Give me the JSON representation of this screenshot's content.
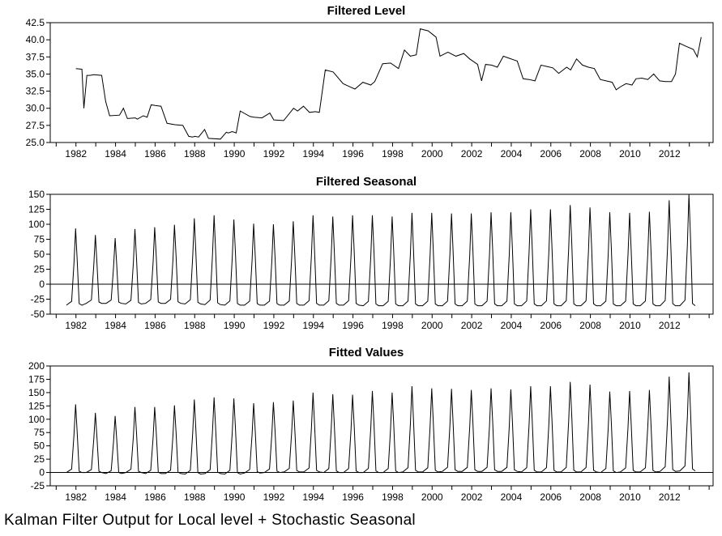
{
  "caption": "Kalman Filter Output for Local level + Stochastic Seasonal",
  "chart_data": [
    {
      "type": "line",
      "title": "Filtered Level",
      "xlabel": "",
      "ylabel": "",
      "xlim": [
        1980.7,
        2014.2
      ],
      "ylim": [
        25.0,
        42.5
      ],
      "yticks": [
        "25.0",
        "27.5",
        "30.0",
        "32.5",
        "35.0",
        "37.5",
        "40.0",
        "42.5"
      ],
      "xticks": [
        "1982",
        "1984",
        "1986",
        "1988",
        "1990",
        "1992",
        "1994",
        "1996",
        "1998",
        "2000",
        "2002",
        "2004",
        "2006",
        "2008",
        "2010",
        "2012"
      ],
      "grid": false,
      "series": [
        {
          "x": [
            1982.0,
            1982.3,
            1982.4,
            1982.55,
            1982.7,
            1982.9,
            1983.3,
            1983.5,
            1983.7,
            1984.2,
            1984.4,
            1984.6,
            1985.0,
            1985.1,
            1985.4,
            1985.6,
            1985.8,
            1986.0,
            1986.3,
            1986.6,
            1987.0,
            1987.4,
            1987.7,
            1987.9,
            1988.0,
            1988.2,
            1988.5,
            1988.7,
            1989.3,
            1989.6,
            1989.7,
            1989.9,
            1990.1,
            1990.3,
            1990.8,
            1991.0,
            1991.4,
            1991.8,
            1992.0,
            1992.5,
            1993.0,
            1993.2,
            1993.5,
            1993.8,
            1994.1,
            1994.3,
            1994.6,
            1995.0,
            1995.5,
            1995.8,
            1996.1,
            1996.5,
            1996.9,
            1997.1,
            1997.5,
            1997.9,
            1998.3,
            1998.6,
            1998.9,
            1999.2,
            1999.4,
            1999.8,
            2000.2,
            2000.4,
            2000.8,
            2001.2,
            2001.6,
            2001.9,
            2002.3,
            2002.5,
            2002.7,
            2003.0,
            2003.3,
            2003.6,
            2003.9,
            2004.3,
            2004.6,
            2004.9,
            2005.2,
            2005.5,
            2005.8,
            2006.1,
            2006.4,
            2006.8,
            2007.0,
            2007.3,
            2007.6,
            2007.9,
            2008.2,
            2008.5,
            2008.8,
            2009.1,
            2009.3,
            2009.5,
            2009.8,
            2010.1,
            2010.3,
            2010.6,
            2010.9,
            2011.2,
            2011.5,
            2011.8,
            2012.1,
            2012.3,
            2012.5,
            2012.8,
            2013.2,
            2013.4,
            2013.6
          ],
          "y": [
            35.8,
            35.7,
            30.0,
            34.8,
            34.8,
            34.9,
            34.8,
            31.0,
            28.9,
            29.0,
            30.0,
            28.5,
            28.6,
            28.4,
            28.9,
            28.7,
            30.5,
            30.4,
            30.3,
            27.8,
            27.6,
            27.5,
            25.9,
            25.8,
            25.9,
            25.8,
            26.9,
            25.6,
            25.5,
            26.5,
            26.4,
            26.6,
            26.4,
            29.6,
            28.8,
            28.7,
            28.6,
            29.3,
            28.3,
            28.2,
            30.0,
            29.6,
            30.3,
            29.4,
            29.5,
            29.4,
            35.6,
            35.3,
            33.6,
            33.2,
            32.8,
            33.8,
            33.4,
            33.9,
            36.5,
            36.6,
            35.8,
            38.5,
            37.6,
            37.8,
            41.6,
            41.3,
            40.4,
            37.6,
            38.2,
            37.6,
            38.0,
            37.2,
            36.4,
            34.0,
            36.4,
            36.3,
            36.0,
            37.6,
            37.3,
            36.9,
            34.3,
            34.2,
            34.0,
            36.3,
            36.1,
            35.9,
            35.1,
            36.0,
            35.6,
            37.2,
            36.3,
            36.0,
            35.8,
            34.2,
            34.0,
            33.8,
            32.7,
            33.1,
            33.6,
            33.4,
            34.3,
            34.4,
            34.2,
            35.0,
            34.0,
            33.9,
            33.9,
            35.0,
            39.5,
            39.1,
            38.6,
            37.5,
            40.4
          ]
        }
      ]
    },
    {
      "type": "line",
      "title": "Filtered Seasonal",
      "xlabel": "",
      "ylabel": "",
      "xlim": [
        1980.7,
        2014.2
      ],
      "ylim": [
        -50,
        150
      ],
      "yticks": [
        "-50",
        "-25",
        "0",
        "25",
        "50",
        "75",
        "100",
        "125",
        "150"
      ],
      "xticks": [
        "1982",
        "1984",
        "1986",
        "1988",
        "1990",
        "1992",
        "1994",
        "1996",
        "1998",
        "2000",
        "2002",
        "2004",
        "2006",
        "2008",
        "2010",
        "2012"
      ],
      "reference_line": 0,
      "grid": false,
      "annual_peaks": {
        "years": [
          1982,
          1983,
          1984,
          1985,
          1986,
          1987,
          1988,
          1989,
          1990,
          1991,
          1992,
          1993,
          1994,
          1995,
          1996,
          1997,
          1998,
          1999,
          2000,
          2001,
          2002,
          2003,
          2004,
          2005,
          2006,
          2007,
          2008,
          2009,
          2010,
          2011,
          2012,
          2013
        ],
        "peak": [
          93,
          82,
          77,
          92,
          95,
          99,
          110,
          115,
          108,
          101,
          100,
          105,
          115,
          113,
          115,
          115,
          113,
          119,
          119,
          118,
          118,
          120,
          120,
          125,
          125,
          132,
          128,
          120,
          119,
          121,
          140,
          150
        ],
        "trough": [
          -35,
          -32,
          -32,
          -33,
          -32,
          -32,
          -33,
          -34,
          -35,
          -35,
          -35,
          -35,
          -35,
          -35,
          -35,
          -36,
          -36,
          -36,
          -36,
          -36,
          -36,
          -36,
          -36,
          -36,
          -36,
          -36,
          -36,
          -36,
          -36,
          -36,
          -36,
          -36
        ]
      }
    },
    {
      "type": "line",
      "title": "Fitted Values",
      "xlabel": "",
      "ylabel": "",
      "xlim": [
        1980.7,
        2014.2
      ],
      "ylim": [
        -25,
        200
      ],
      "yticks": [
        "-25",
        "0",
        "25",
        "50",
        "75",
        "100",
        "125",
        "150",
        "175",
        "200"
      ],
      "xticks": [
        "1982",
        "1984",
        "1986",
        "1988",
        "1990",
        "1992",
        "1994",
        "1996",
        "1998",
        "2000",
        "2002",
        "2004",
        "2006",
        "2008",
        "2010",
        "2012"
      ],
      "reference_line": 0,
      "grid": false,
      "annual_peaks": {
        "years": [
          1982,
          1983,
          1984,
          1985,
          1986,
          1987,
          1988,
          1989,
          1990,
          1991,
          1992,
          1993,
          1994,
          1995,
          1996,
          1997,
          1998,
          1999,
          2000,
          2001,
          2002,
          2003,
          2004,
          2005,
          2006,
          2007,
          2008,
          2009,
          2010,
          2011,
          2012,
          2013
        ],
        "peak": [
          128,
          112,
          106,
          123,
          123,
          126,
          137,
          141,
          139,
          130,
          132,
          135,
          150,
          147,
          146,
          153,
          150,
          162,
          158,
          157,
          155,
          158,
          156,
          162,
          162,
          170,
          165,
          152,
          153,
          155,
          180,
          188
        ],
        "trough": [
          0,
          0,
          -2,
          0,
          -2,
          -2,
          -3,
          -2,
          -3,
          -1,
          0,
          1,
          1,
          0,
          0,
          0,
          0,
          1,
          1,
          2,
          2,
          2,
          2,
          1,
          1,
          1,
          1,
          0,
          1,
          1,
          2,
          3
        ]
      }
    }
  ]
}
